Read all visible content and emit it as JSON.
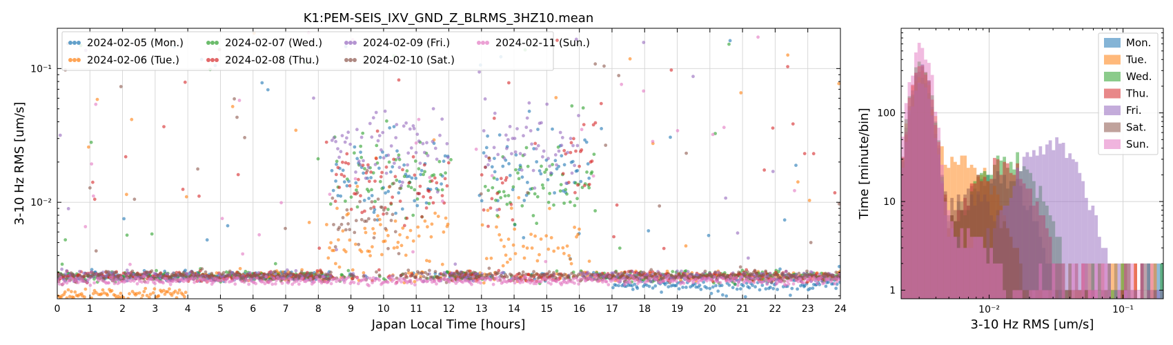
{
  "chart_data": [
    {
      "type": "scatter",
      "title": "K1:PEM-SEIS_IXV_GND_Z_BLRMS_3HZ10.mean",
      "xlabel": "Japan Local Time [hours]",
      "ylabel": "3-10 Hz RMS [um/s]",
      "xlim": [
        0,
        24
      ],
      "ylim": [
        0.0019,
        0.2
      ],
      "yscale": "log",
      "grid": true,
      "legend_placement": "top-left",
      "x_ticks": [
        "0",
        "1",
        "2",
        "3",
        "4",
        "5",
        "6",
        "7",
        "8",
        "9",
        "10",
        "11",
        "12",
        "13",
        "14",
        "15",
        "16",
        "17",
        "18",
        "19",
        "20",
        "21",
        "22",
        "23",
        "24"
      ],
      "y_ticks": [
        {
          "value": 0.01,
          "label": "10⁻²"
        },
        {
          "value": 0.1,
          "label": "10⁻¹"
        }
      ],
      "series": [
        {
          "name": "2024-02-05 (Mon.)",
          "color": "#1f77b4",
          "day": "weekday",
          "working_levels": [
            [
              8.4,
              9.5,
              0.018,
              "high"
            ],
            [
              9.5,
              12.0,
              0.015,
              "high"
            ],
            [
              13.0,
              16.3,
              0.017,
              "high"
            ]
          ]
        },
        {
          "name": "2024-02-06 (Tue.)",
          "color": "#ff7f0e",
          "day": "weekday",
          "working_levels": [
            [
              8.2,
              12.0,
              0.0055,
              "low"
            ],
            [
              13.0,
              16.0,
              0.0048,
              "low"
            ]
          ]
        },
        {
          "name": "2024-02-07 (Wed.)",
          "color": "#2ca02c",
          "day": "weekday",
          "working_levels": [
            [
              8.5,
              12.0,
              0.014,
              "high"
            ],
            [
              13.0,
              16.5,
              0.013,
              "high"
            ]
          ]
        },
        {
          "name": "2024-02-08 (Thu.)",
          "color": "#d62728",
          "day": "weekday",
          "working_levels": [
            [
              8.5,
              12.0,
              0.013,
              "high"
            ],
            [
              13.0,
              14.0,
              0.011,
              "high"
            ],
            [
              15.5,
              16.5,
              0.025,
              "high"
            ]
          ]
        },
        {
          "name": "2024-02-09 (Fri.)",
          "color": "#9467bd",
          "day": "weekday",
          "working_levels": [
            [
              8.4,
              12.0,
              0.025,
              "high"
            ],
            [
              13.0,
              16.0,
              0.028,
              "high"
            ]
          ]
        },
        {
          "name": "2024-02-10 (Sat.)",
          "color": "#8c564b",
          "day": "weekend",
          "working_levels": [
            [
              8.4,
              10.5,
              0.008,
              "low"
            ]
          ]
        },
        {
          "name": "2024-02-11 (Sun.)",
          "color": "#e377c2",
          "day": "weekend",
          "working_levels": []
        }
      ],
      "baseline_rms": 0.0028
    },
    {
      "type": "bar",
      "subtype": "histogram",
      "xlabel": "3-10 Hz RMS [um/s]",
      "ylabel": "Time [minute/bin]",
      "xscale": "log",
      "yscale": "log",
      "xlim": [
        0.0022,
        0.2
      ],
      "ylim": [
        0.8,
        900
      ],
      "grid": true,
      "legend_placement": "top-right",
      "x_ticks": [
        {
          "value": 0.01,
          "label": "10⁻²"
        },
        {
          "value": 0.1,
          "label": "10⁻¹"
        }
      ],
      "y_ticks": [
        {
          "value": 1,
          "label": "1"
        },
        {
          "value": 10,
          "label": "10"
        },
        {
          "value": 100,
          "label": "100"
        }
      ],
      "series": [
        {
          "name": "Mon.",
          "color": "#1f77b4"
        },
        {
          "name": "Tue.",
          "color": "#ff7f0e"
        },
        {
          "name": "Wed.",
          "color": "#2ca02c"
        },
        {
          "name": "Thu.",
          "color": "#d62728"
        },
        {
          "name": "Fri.",
          "color": "#9467bd"
        },
        {
          "name": "Sat.",
          "color": "#8c564b"
        },
        {
          "name": "Sun.",
          "color": "#e377c2"
        }
      ]
    }
  ]
}
